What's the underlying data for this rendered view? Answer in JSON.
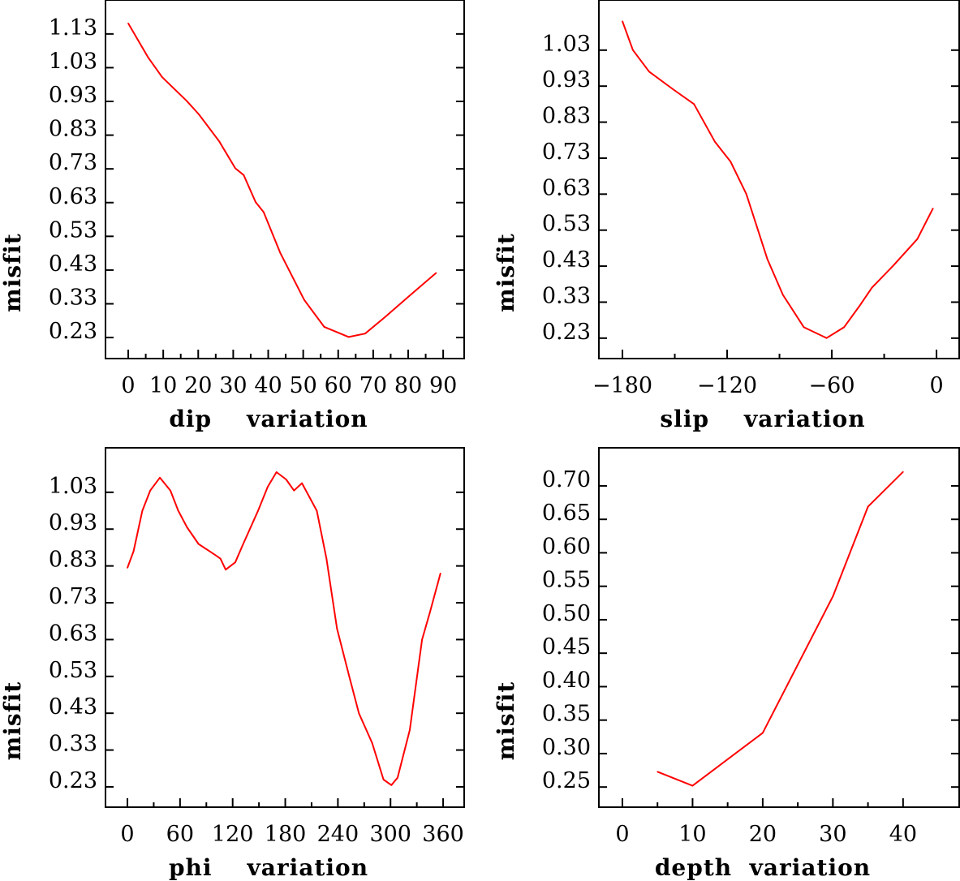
{
  "colors": {
    "line": "#ff0000",
    "axis": "#000000"
  },
  "chart_data": [
    {
      "type": "line",
      "xlabel": "dip    variation",
      "ylabel": "misfit",
      "xlim": [
        -6.5,
        96
      ],
      "ylim": [
        0.146,
        1.209
      ],
      "xticks": [
        0,
        10,
        20,
        30,
        40,
        50,
        60,
        70,
        80,
        90
      ],
      "yticks": [
        "1.13",
        "1.03",
        "0.93",
        "0.83",
        "0.73",
        "0.63",
        "0.53",
        "0.43",
        "0.33",
        "0.23"
      ],
      "x": [
        0,
        5.6,
        9.7,
        16.7,
        20.2,
        26,
        30.6,
        33,
        36.4,
        38.7,
        43.4,
        50.3,
        56,
        63,
        67.7,
        73.5,
        79,
        88
      ],
      "y": [
        1.14,
        1.04,
        0.98,
        0.91,
        0.87,
        0.79,
        0.71,
        0.69,
        0.61,
        0.58,
        0.46,
        0.32,
        0.24,
        0.21,
        0.22,
        0.27,
        0.32,
        0.4
      ]
    },
    {
      "type": "line",
      "xlabel": "slip    variation",
      "ylabel": "misfit",
      "xlim": [
        -193.5,
        13
      ],
      "ylim": [
        0.153,
        1.149
      ],
      "xticks": [
        -180,
        -120,
        -60,
        0
      ],
      "yticks": [
        "1.03",
        "0.93",
        "0.83",
        "0.73",
        "0.63",
        "0.53",
        "0.43",
        "0.33",
        "0.23"
      ],
      "x": [
        -180,
        -174,
        -164.7,
        -150.7,
        -139,
        -127,
        -118,
        -109,
        -97,
        -88,
        -76,
        -63,
        -53,
        -44,
        -37,
        -25,
        -11,
        -2
      ],
      "y": [
        1.09,
        1.01,
        0.95,
        0.9,
        0.86,
        0.755,
        0.7,
        0.61,
        0.43,
        0.33,
        0.24,
        0.21,
        0.24,
        0.3,
        0.35,
        0.41,
        0.485,
        0.57
      ]
    },
    {
      "type": "line",
      "xlabel": "phi    variation",
      "ylabel": "misfit",
      "xlim": [
        -25,
        384
      ],
      "ylim": [
        0.155,
        1.131
      ],
      "xticks": [
        0,
        60,
        120,
        180,
        240,
        300,
        360
      ],
      "yticks": [
        "1.03",
        "0.93",
        "0.83",
        "0.73",
        "0.63",
        "0.53",
        "0.43",
        "0.33",
        "0.23"
      ],
      "x": [
        0,
        7,
        17,
        26,
        37,
        49,
        58,
        68,
        81,
        100,
        106,
        112,
        123,
        132,
        149,
        160,
        170,
        181,
        190,
        199,
        216,
        227,
        239,
        253,
        264,
        279,
        292,
        301,
        308,
        322,
        336,
        345,
        357
      ],
      "y": [
        0.805,
        0.85,
        0.96,
        1.015,
        1.05,
        1.015,
        0.96,
        0.915,
        0.87,
        0.84,
        0.83,
        0.8,
        0.82,
        0.87,
        0.96,
        1.025,
        1.065,
        1.045,
        1.015,
        1.035,
        0.96,
        0.83,
        0.64,
        0.51,
        0.41,
        0.33,
        0.23,
        0.215,
        0.235,
        0.365,
        0.61,
        0.685,
        0.79
      ]
    },
    {
      "type": "line",
      "xlabel": "depth  variation",
      "ylabel": "misfit",
      "xlim": [
        -3.35,
        48
      ],
      "ylim": [
        0.209,
        0.746
      ],
      "xticks": [
        0,
        10,
        20,
        30,
        40
      ],
      "yticks": [
        "0.70",
        "0.65",
        "0.60",
        "0.55",
        "0.50",
        "0.45",
        "0.40",
        "0.35",
        "0.30",
        "0.25"
      ],
      "x": [
        5,
        10,
        20,
        30,
        35,
        40
      ],
      "y": [
        0.262,
        0.241,
        0.32,
        0.524,
        0.658,
        0.71
      ]
    }
  ]
}
